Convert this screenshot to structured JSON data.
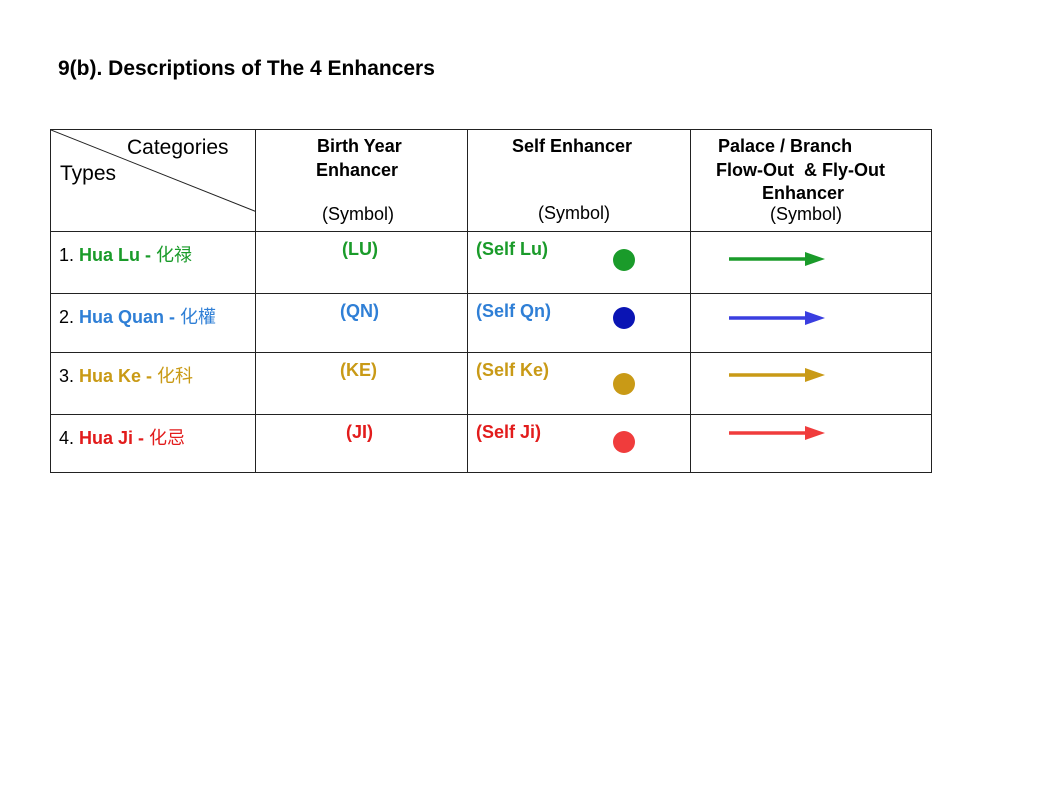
{
  "title": "9(b). Descriptions of The 4 Enhancers",
  "table": {
    "corner": {
      "categories": "Categories",
      "types": "Types"
    },
    "headers": {
      "birth_year": {
        "line1": "Birth Year",
        "line2": "Enhancer",
        "symbol": "(Symbol)"
      },
      "self": {
        "line1": "Self Enhancer",
        "symbol": "(Symbol)"
      },
      "palace": {
        "line1": "Palace / Branch",
        "line2": "Flow-Out  & Fly-Out",
        "line3": "Enhancer",
        "symbol": "(Symbol)"
      }
    },
    "rows": [
      {
        "num": "1.",
        "name": "Hua Lu - ",
        "chinese": "化禄",
        "code": "(LU)",
        "self_code": "(Self Lu)",
        "color": "#1a9b2a",
        "dot_color": "#1a9b2a",
        "arrow_color": "#1a9b2a"
      },
      {
        "num": "2.",
        "name": "Hua Quan - ",
        "chinese": "化權",
        "code": "(QN)",
        "self_code": "(Self Qn)",
        "color": "#2f7fd6",
        "dot_color": "#0a14b4",
        "arrow_color": "#3a3ee0"
      },
      {
        "num": "3.",
        "name": "Hua Ke - ",
        "chinese": "化科",
        "code": "(KE)",
        "self_code": "(Self Ke)",
        "color": "#c99a16",
        "dot_color": "#c99a16",
        "arrow_color": "#c99a16"
      },
      {
        "num": "4.",
        "name": "Hua Ji - ",
        "chinese": "化忌",
        "code": "(JI)",
        "self_code": "(Self Ji)",
        "color": "#e21c1c",
        "dot_color": "#f03c3c",
        "arrow_color": "#f03c3c"
      }
    ]
  }
}
